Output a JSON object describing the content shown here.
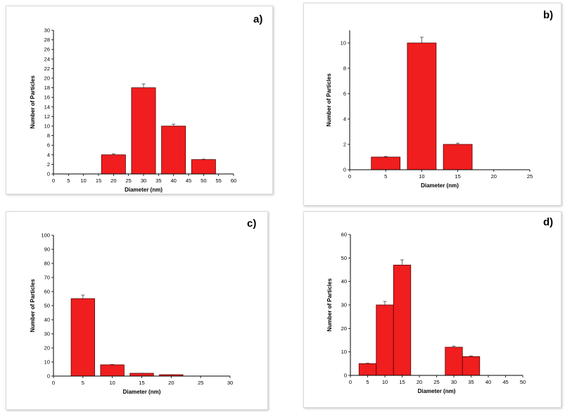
{
  "colors": {
    "bar": "#f01e1e",
    "bar_edge": "#5a0000",
    "axis": "#000000"
  },
  "chart_data": [
    {
      "id": "a",
      "type": "bar",
      "label": "a)",
      "xlabel": "Diameter (nm)",
      "ylabel": "Number of Particles",
      "xlim": [
        0,
        60
      ],
      "ylim": [
        0,
        30
      ],
      "xticks": [
        0,
        5,
        10,
        15,
        20,
        25,
        30,
        35,
        40,
        45,
        50,
        55,
        60
      ],
      "yticks": [
        0,
        2,
        4,
        6,
        8,
        10,
        12,
        14,
        16,
        18,
        20,
        22,
        24,
        26,
        28,
        30
      ],
      "bin_width": 8,
      "categories": [
        20,
        30,
        40,
        50
      ],
      "values": [
        4,
        18,
        10,
        3
      ],
      "errors": [
        0.2,
        0.8,
        0.4,
        0.1
      ]
    },
    {
      "id": "b",
      "type": "bar",
      "label": "b)",
      "xlabel": "Diameter (nm)",
      "ylabel": "Number of Particles",
      "xlim": [
        0,
        25
      ],
      "ylim": [
        0,
        11
      ],
      "xticks": [
        0,
        5,
        10,
        15,
        20,
        25
      ],
      "yticks": [
        0,
        2,
        4,
        6,
        8,
        10
      ],
      "bin_width": 4,
      "categories": [
        5,
        10,
        15
      ],
      "values": [
        1,
        10,
        2
      ],
      "errors": [
        0.05,
        0.45,
        0.1
      ]
    },
    {
      "id": "c",
      "type": "bar",
      "label": "c)",
      "xlabel": "Diameter (nm)",
      "ylabel": "Number of Particles",
      "xlim": [
        0,
        30
      ],
      "ylim": [
        0,
        100
      ],
      "xticks": [
        0,
        5,
        10,
        15,
        20,
        25,
        30
      ],
      "yticks": [
        0,
        10,
        20,
        30,
        40,
        50,
        60,
        70,
        80,
        90,
        100
      ],
      "bin_width": 4,
      "categories": [
        5,
        10,
        15,
        20
      ],
      "values": [
        55,
        8,
        2,
        1
      ],
      "errors": [
        2.5,
        0.3,
        0.1,
        0.1
      ]
    },
    {
      "id": "d",
      "type": "bar",
      "label": "d)",
      "xlabel": "Diameter (nm)",
      "ylabel": "Number of Particles",
      "xlim": [
        0,
        50
      ],
      "ylim": [
        0,
        60
      ],
      "xticks": [
        0,
        5,
        10,
        15,
        20,
        25,
        30,
        35,
        40,
        45,
        50
      ],
      "yticks": [
        0,
        10,
        20,
        30,
        40,
        50,
        60
      ],
      "bin_width": 5,
      "categories": [
        5,
        10,
        15,
        30,
        35
      ],
      "values": [
        5,
        30,
        47,
        12,
        8
      ],
      "errors": [
        0.2,
        1.5,
        2.2,
        0.5,
        0.3
      ]
    }
  ]
}
